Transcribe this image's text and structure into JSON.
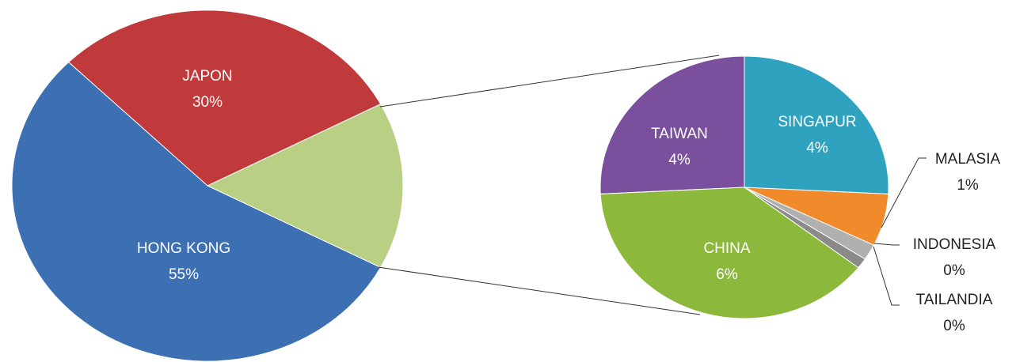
{
  "chart_data": [
    {
      "type": "pie",
      "categories": [
        "HONG KONG",
        "JAPON",
        null
      ],
      "values": [
        55,
        30,
        15.5
      ],
      "value_labels": [
        "55%",
        "30%",
        null
      ],
      "colors": [
        "#3d6fb3",
        "#c0393b",
        "#b8cf84"
      ]
    },
    {
      "type": "pie",
      "categories": [
        "SINGAPUR",
        "MALASIA",
        "INDONESIA",
        "TAILANDIA",
        "CHINA",
        "TAIWAN"
      ],
      "values": [
        4,
        1,
        0.3,
        0.2,
        6,
        4
      ],
      "value_labels": [
        "4%",
        "1%",
        "0%",
        "0%",
        "6%",
        "4%"
      ],
      "colors": [
        "#2fa2bf",
        "#f08a2a",
        "#b0b0b0",
        "#8a8a8a",
        "#8cb83c",
        "#7a4f9e"
      ]
    }
  ]
}
